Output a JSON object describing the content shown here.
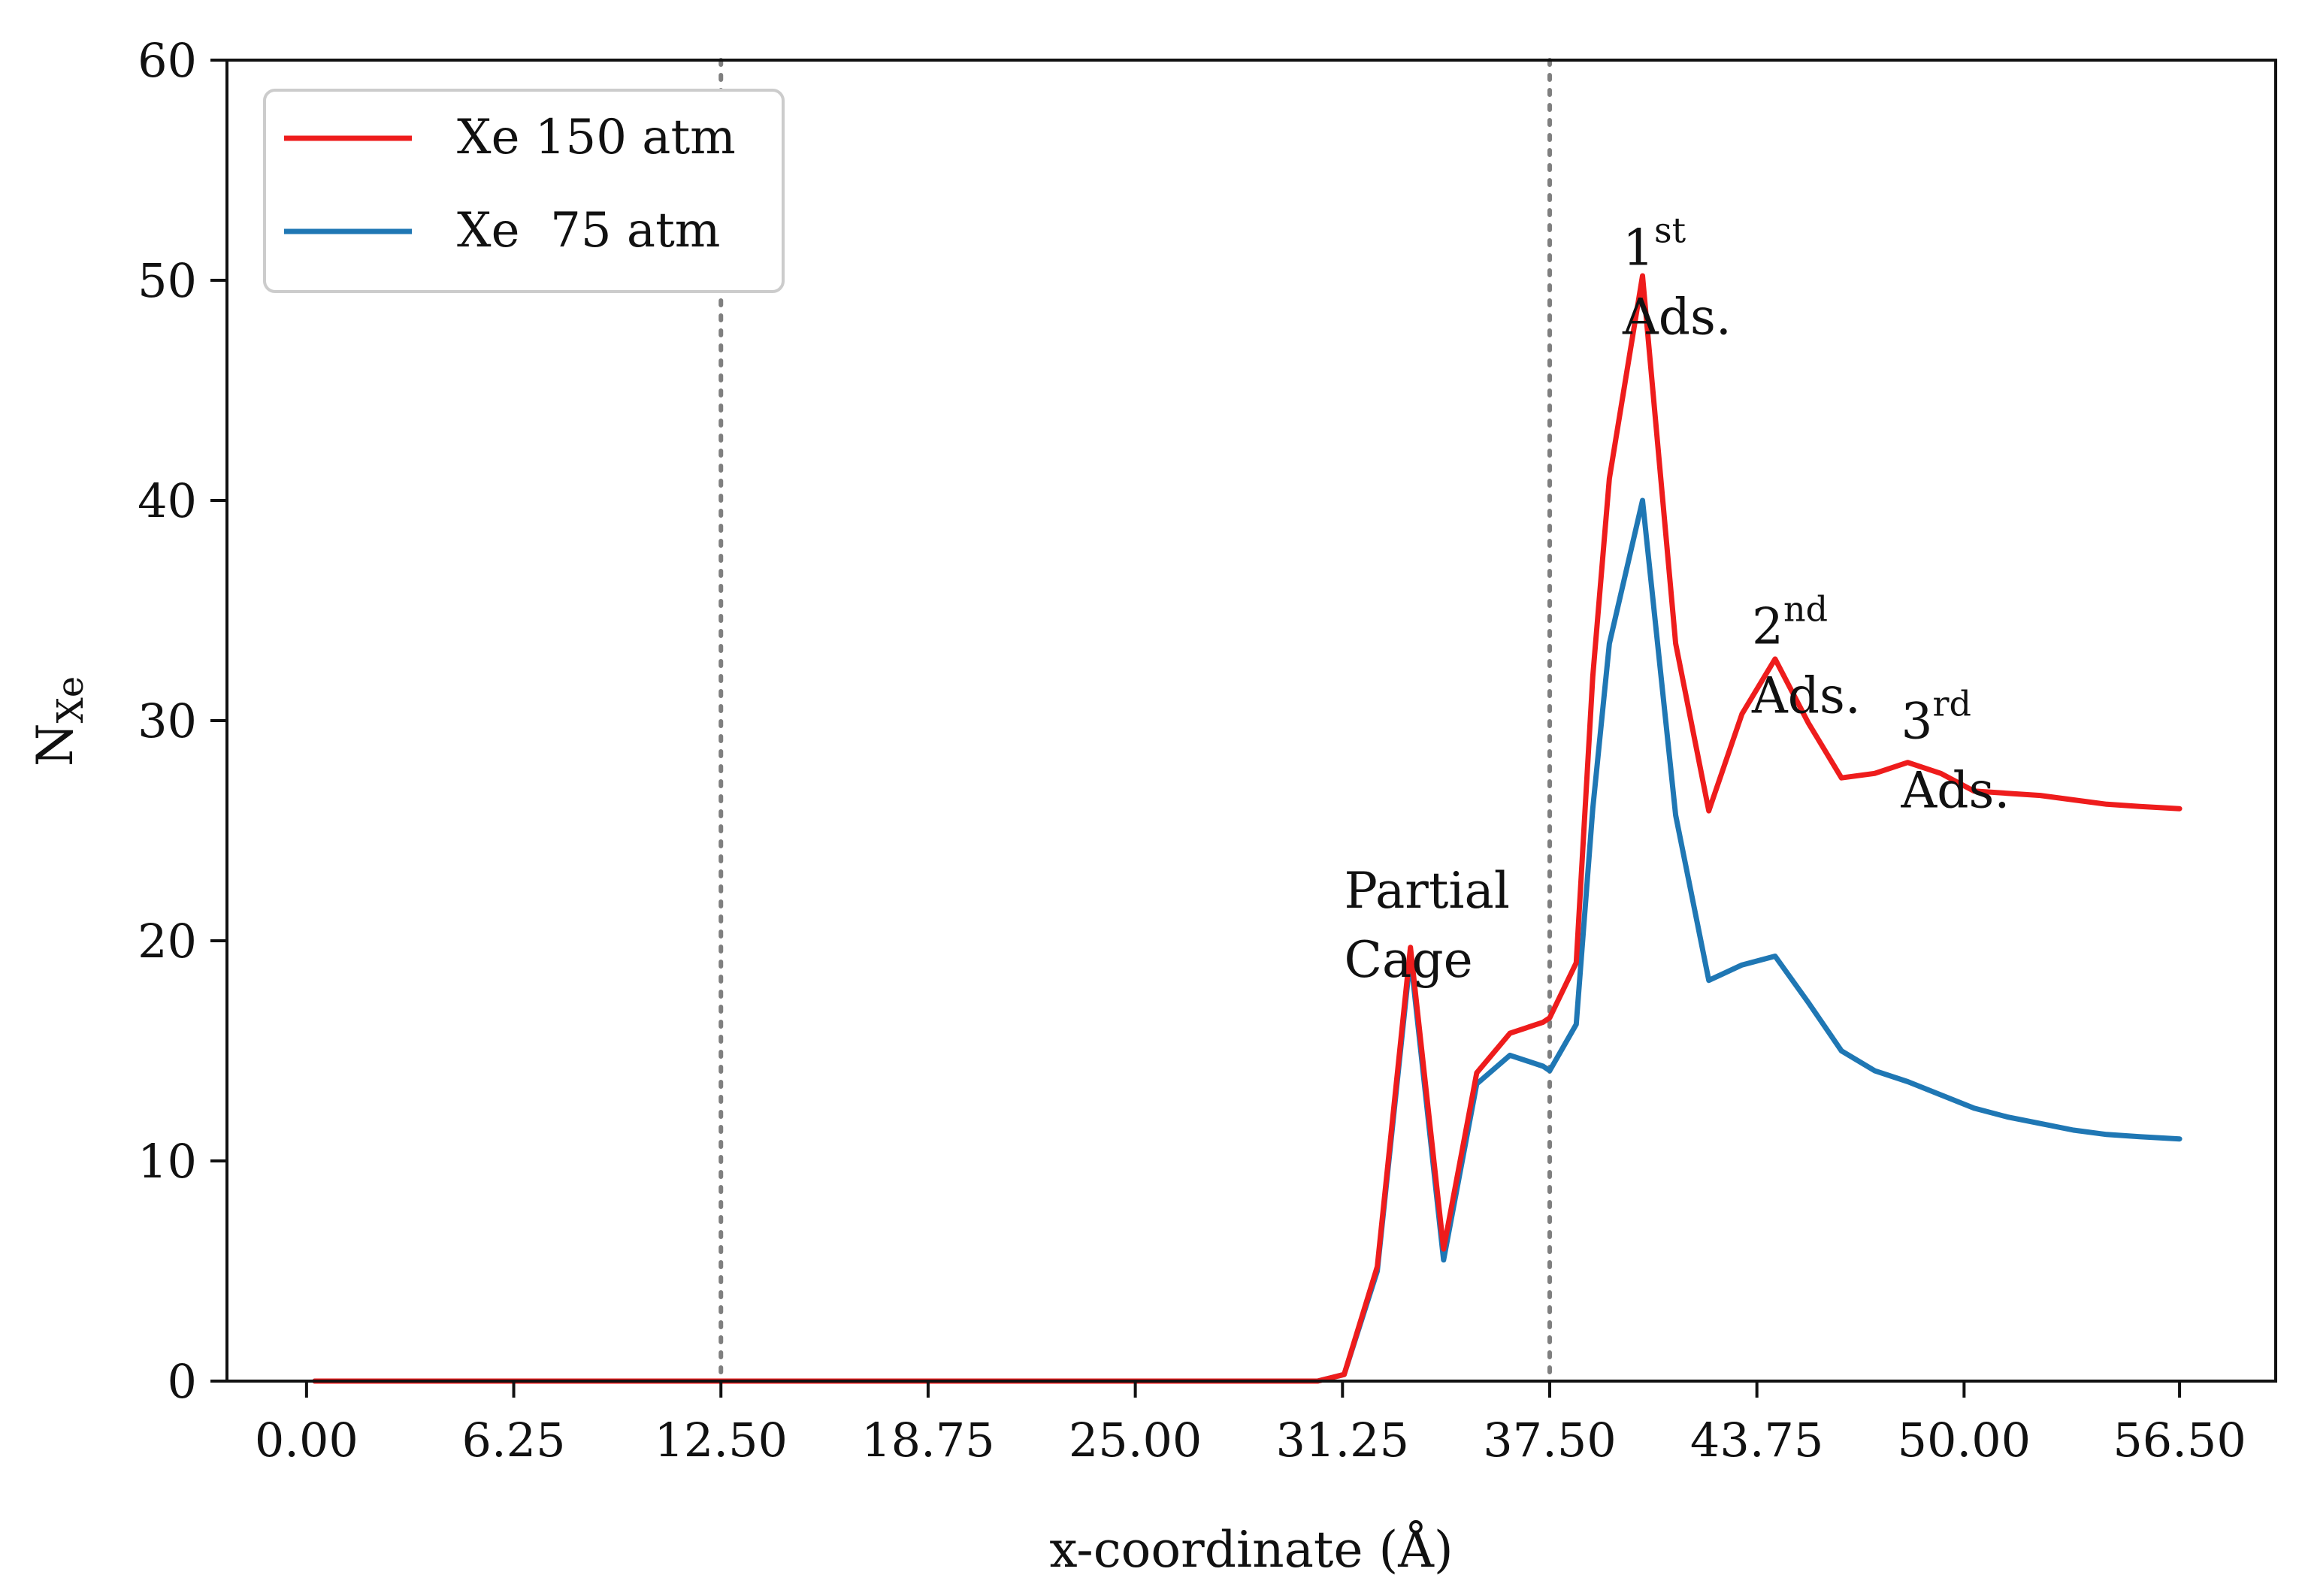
{
  "chart_data": {
    "type": "line",
    "title": "",
    "xlabel": "x-coordinate (Å)",
    "ylabel": {
      "main": "N",
      "sub": "Xe"
    },
    "xlim": [
      -2.4,
      59.4
    ],
    "ylim": [
      0,
      60
    ],
    "xticks": [
      0,
      6.25,
      12.5,
      18.75,
      25,
      31.25,
      37.5,
      43.75,
      50,
      56.5
    ],
    "xtick_labels": [
      "0.00",
      "6.25",
      "12.50",
      "18.75",
      "25.00",
      "31.25",
      "37.50",
      "43.75",
      "50.00",
      "56.50"
    ],
    "yticks": [
      0,
      10,
      20,
      30,
      40,
      50,
      60
    ],
    "ytick_labels": [
      "0",
      "10",
      "20",
      "30",
      "40",
      "50",
      "60"
    ],
    "grid": false,
    "legend_position": "top-left",
    "vlines": [
      12.5,
      37.5
    ],
    "series": [
      {
        "name": "Xe 150 atm",
        "color": "#ee1c1c",
        "x": [
          0.25,
          30.5,
          31.3,
          32.3,
          33.3,
          34.3,
          35.3,
          36.3,
          37.3,
          37.5,
          38.3,
          38.8,
          39.3,
          40.3,
          41.3,
          42.3,
          43.3,
          44.3,
          45.3,
          46.3,
          47.3,
          48.3,
          49.3,
          50.3,
          51.3,
          52.3,
          53.3,
          54.3,
          55.3,
          56.5
        ],
        "values": [
          0,
          0,
          0.3,
          5.2,
          19.7,
          6.0,
          14.0,
          15.8,
          16.3,
          16.5,
          19.0,
          32.0,
          41.0,
          50.2,
          33.5,
          25.9,
          30.3,
          32.8,
          29.9,
          27.4,
          27.6,
          28.1,
          27.6,
          26.8,
          26.7,
          26.6,
          26.4,
          26.2,
          26.1,
          26.0
        ]
      },
      {
        "name": "Xe  75 atm",
        "color": "#1f77b4",
        "x": [
          0.25,
          30.5,
          31.3,
          32.3,
          33.3,
          34.3,
          35.3,
          36.3,
          37.3,
          37.5,
          38.3,
          38.8,
          39.3,
          40.3,
          41.3,
          42.3,
          43.3,
          44.3,
          45.3,
          46.3,
          47.3,
          48.3,
          49.3,
          50.3,
          51.3,
          52.3,
          53.3,
          54.3,
          55.3,
          56.5
        ],
        "values": [
          0,
          0,
          0.3,
          5.0,
          19.3,
          5.5,
          13.5,
          14.8,
          14.3,
          14.1,
          16.2,
          26.0,
          33.5,
          40.0,
          25.7,
          18.2,
          18.9,
          19.3,
          17.2,
          15.0,
          14.1,
          13.6,
          13.0,
          12.4,
          12.0,
          11.7,
          11.4,
          11.2,
          11.1,
          11.0
        ]
      }
    ],
    "annotations": [
      {
        "id": "partial-cage",
        "lines": [
          "Partial",
          "Cage"
        ],
        "x": 31.3,
        "y": 21.5
      },
      {
        "id": "first-ads",
        "base": "1",
        "sup": "st",
        "line2": "Ads.",
        "x": 39.7,
        "y": 50.7
      },
      {
        "id": "second-ads",
        "base": "2",
        "sup": "nd",
        "line2": "Ads.",
        "x": 43.6,
        "y": 33.5
      },
      {
        "id": "third-ads",
        "base": "3",
        "sup": "rd",
        "line2": "Ads.",
        "x": 48.1,
        "y": 29.2
      }
    ]
  }
}
